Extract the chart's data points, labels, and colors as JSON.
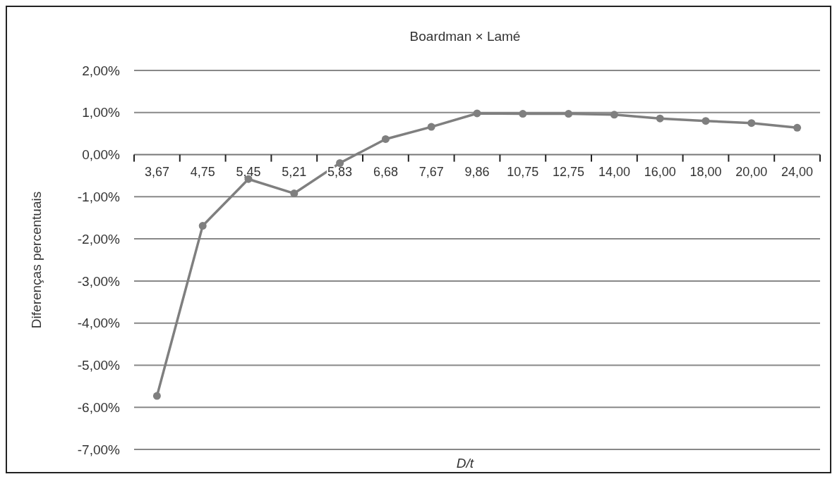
{
  "chart_data": {
    "type": "line",
    "title": "Boardman × Lamé",
    "xlabel": "D/t",
    "ylabel": "Diferenças percentuais",
    "categories": [
      "3,67",
      "4,75",
      "5,45",
      "5,21",
      "5,83",
      "6,68",
      "7,67",
      "9,86",
      "10,75",
      "12,75",
      "14,00",
      "16,00",
      "18,00",
      "20,00",
      "24,00"
    ],
    "series": [
      {
        "color": "#7f7f7f",
        "values": [
          -5.73,
          -1.69,
          -0.58,
          -0.92,
          -0.2,
          0.37,
          0.66,
          0.98,
          0.97,
          0.97,
          0.95,
          0.86,
          0.8,
          0.75,
          0.64
        ]
      }
    ],
    "ylim": [
      -7,
      2
    ],
    "yticks": [
      {
        "value": -7,
        "label": "-7,00%"
      },
      {
        "value": -6,
        "label": "-6,00%"
      },
      {
        "value": -5,
        "label": "-5,00%"
      },
      {
        "value": -4,
        "label": "-4,00%"
      },
      {
        "value": -3,
        "label": "-3,00%"
      },
      {
        "value": -2,
        "label": "-2,00%"
      },
      {
        "value": -1,
        "label": "-1,00%"
      },
      {
        "value": 0,
        "label": "0,00%"
      },
      {
        "value": 1,
        "label": "1,00%"
      },
      {
        "value": 2,
        "label": "2,00%"
      }
    ],
    "grid": "y",
    "marker": "circle",
    "line_style": "solid"
  }
}
